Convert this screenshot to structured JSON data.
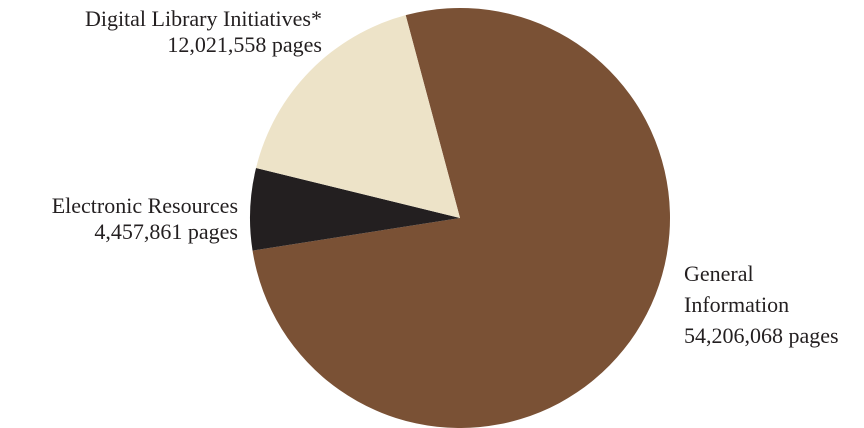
{
  "chart_data": {
    "type": "pie",
    "title": "",
    "slices": [
      {
        "name": "General Information",
        "label_lines": [
          "General",
          "Information"
        ],
        "value": 54206068,
        "value_label": "54,206,068 pages",
        "color": "#7a5135"
      },
      {
        "name": "Electronic Resources",
        "label_lines": [
          "Electronic Resources"
        ],
        "value": 4457861,
        "value_label": "4,457,861 pages",
        "color": "#231f20"
      },
      {
        "name": "Digital Library Initiatives*",
        "label_lines": [
          "Digital Library Initiatives*"
        ],
        "value": 12021558,
        "value_label": "12,021,558 pages",
        "color": "#ede3c8"
      }
    ],
    "start_angle_deg": -15,
    "direction": "clockwise"
  }
}
